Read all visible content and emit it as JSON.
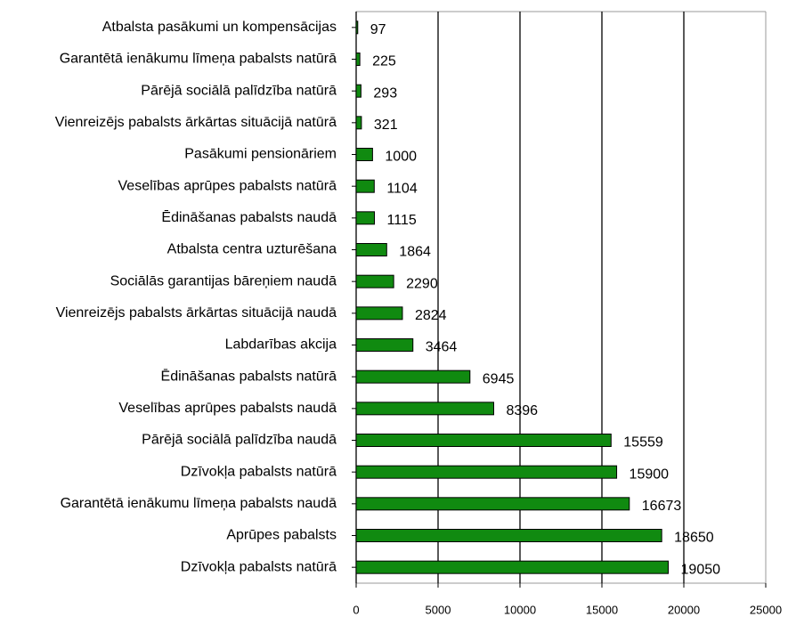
{
  "chart_data": {
    "type": "barh",
    "categories": [
      "Atbalsta pasākumi un kompensācijas",
      "Garantētā ienākumu līmeņa pabalsts natūrā",
      "Pārējā sociālā palīdzība natūrā",
      "Vienreizējs pabalsts ārkārtas situācijā natūrā",
      "Pasākumi pensionāriem",
      "Veselības aprūpes pabalsts natūrā",
      "Ēdināšanas pabalsts naudā",
      "Atbalsta centra uzturēšana",
      "Sociālās garantijas bāreņiem naudā",
      "Vienreizējs pabalsts ārkārtas situācijā naudā",
      "Labdarības akcija",
      "Ēdināšanas pabalsts natūrā",
      "Veselības aprūpes pabalsts naudā",
      "Pārējā sociālā palīdzība naudā",
      "Dzīvokļa pabalsts natūrā",
      "Garantētā ienākumu līmeņa pabalsts naudā",
      "Aprūpes pabalsts",
      "Dzīvokļa pabalsts natūrā"
    ],
    "values": [
      97,
      225,
      293,
      321,
      1000,
      1104,
      1115,
      1864,
      2290,
      2824,
      3464,
      6945,
      8396,
      15559,
      15900,
      16673,
      18650,
      19050
    ],
    "color": "#108a10",
    "xlim": [
      0,
      25000
    ],
    "xticks": [
      0,
      5000,
      10000,
      15000,
      20000,
      25000
    ],
    "grid": true
  }
}
